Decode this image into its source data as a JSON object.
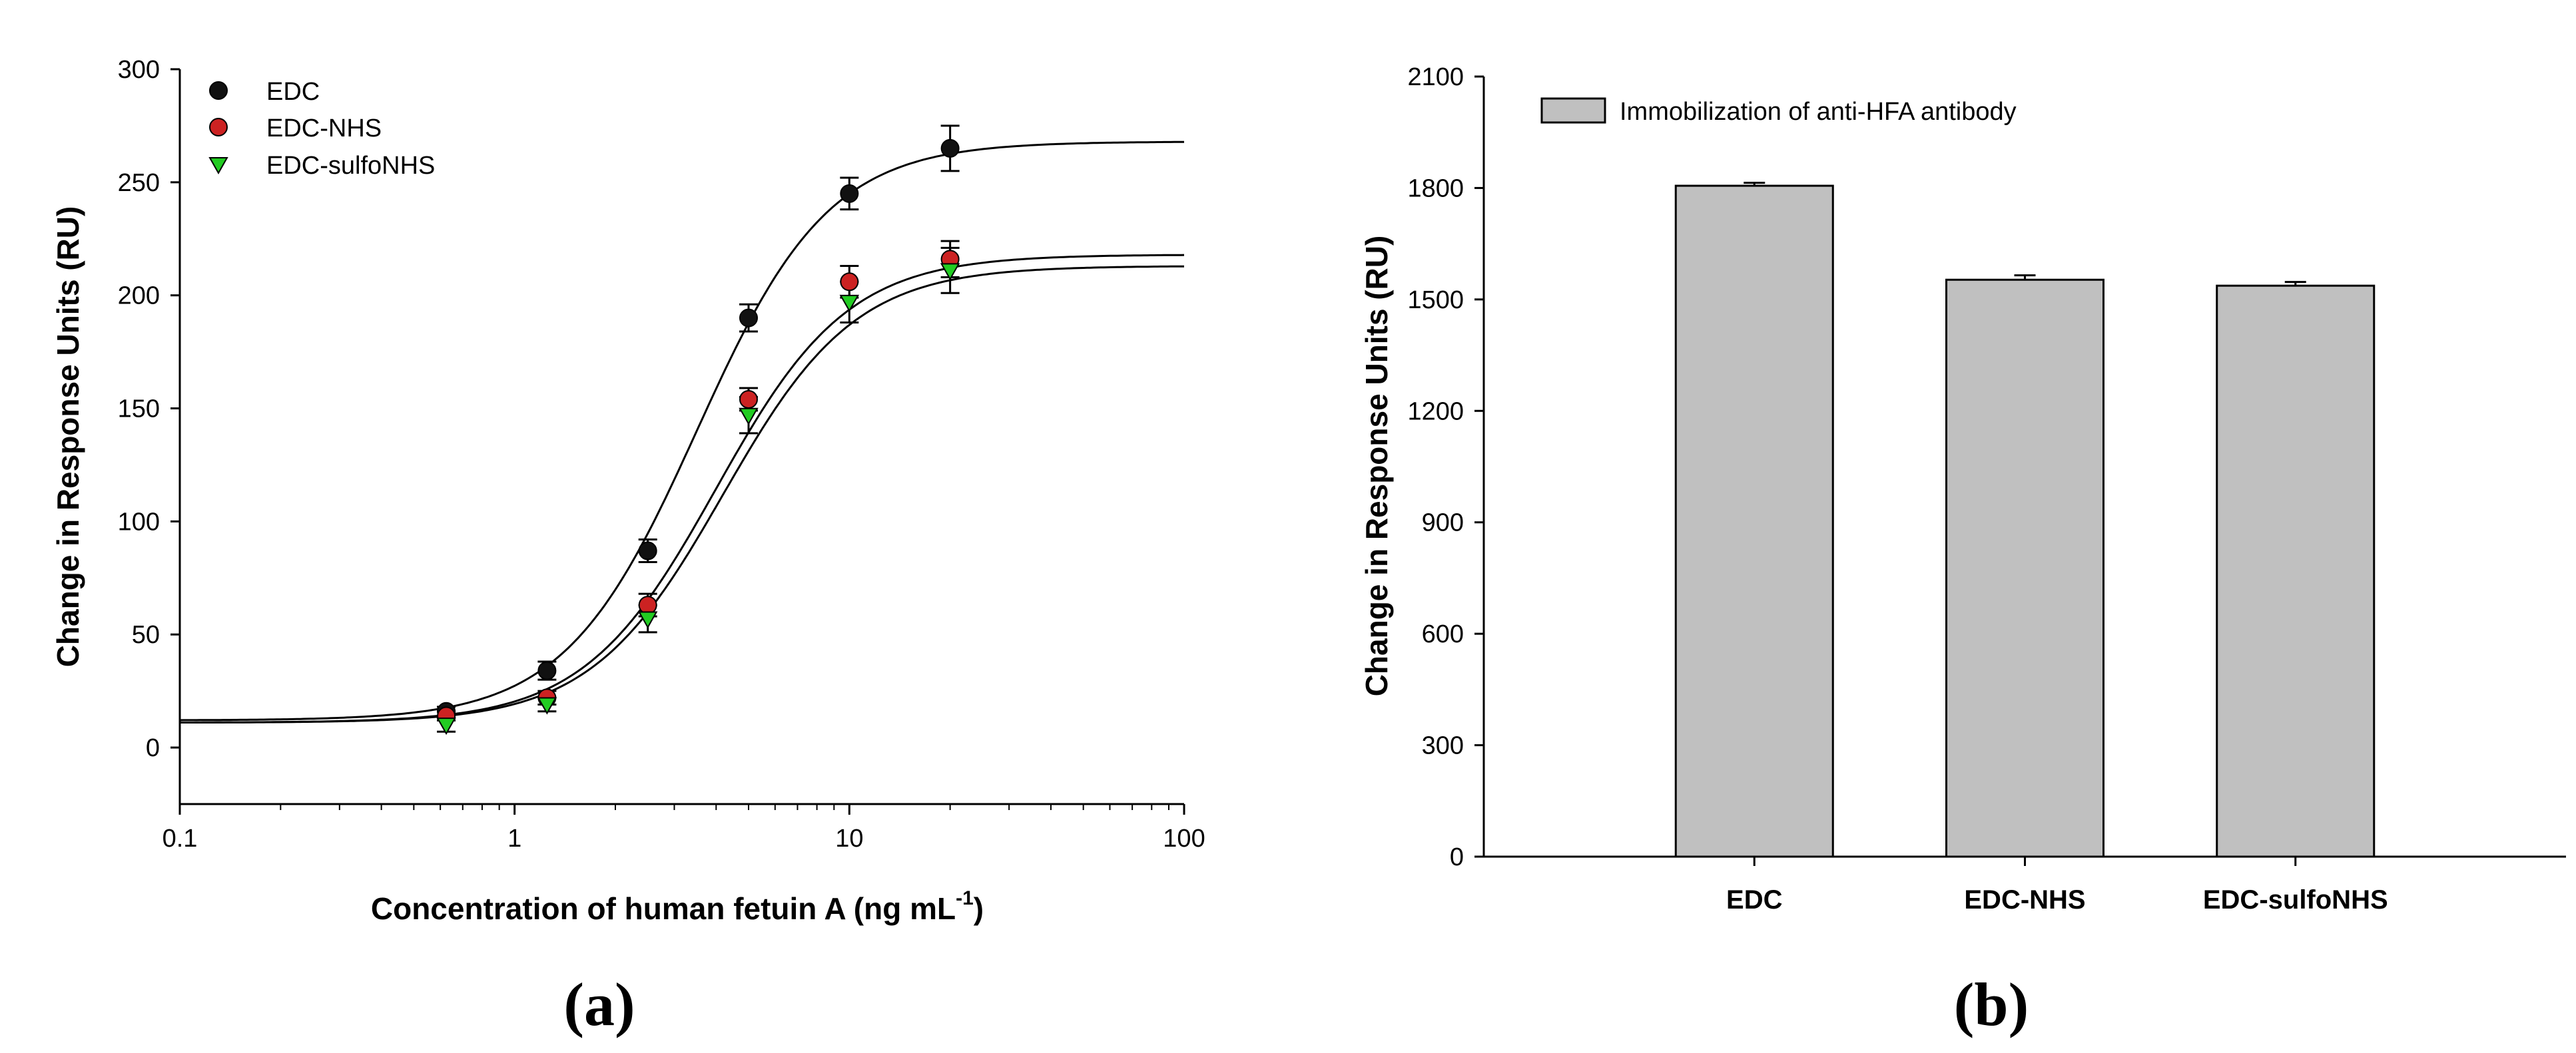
{
  "chart_data": [
    {
      "type": "scatter",
      "panel_label": "(a)",
      "xscale": "log",
      "xlim": [
        0.1,
        100
      ],
      "ylim": [
        -25,
        300
      ],
      "xticks": [
        "0.1",
        "1",
        "10",
        "100"
      ],
      "yticks": [
        "0",
        "50",
        "100",
        "150",
        "200",
        "250",
        "300"
      ],
      "xlabel": "Concentration of human fetuin A (ng mL",
      "xlabel_sup": "-1",
      "xlabel_end": ")",
      "ylabel": "Change in Response Units (RU)",
      "legend_position": "top-left",
      "series": [
        {
          "name": "EDC",
          "marker": "circle",
          "color": "#111111",
          "x": [
            0.625,
            1.25,
            2.5,
            5,
            10,
            20
          ],
          "y": [
            16,
            34,
            87,
            190,
            245,
            265
          ],
          "err": [
            2,
            4,
            5,
            6,
            7,
            10
          ],
          "fit": {
            "bottom": 12,
            "top": 268,
            "ec50": 3.5,
            "hill": 2.2
          }
        },
        {
          "name": "EDC-NHS",
          "marker": "circle",
          "color": "#cc2222",
          "x": [
            0.625,
            1.25,
            2.5,
            5,
            10,
            20
          ],
          "y": [
            14,
            22,
            63,
            154,
            206,
            216
          ],
          "err": [
            2,
            3,
            5,
            5,
            7,
            8
          ],
          "fit": {
            "bottom": 11,
            "top": 218,
            "ec50": 4.0,
            "hill": 2.2
          }
        },
        {
          "name": "EDC-sulfoNHS",
          "marker": "triangle-down",
          "color": "#22cc22",
          "x": [
            0.625,
            1.25,
            2.5,
            5,
            10,
            20
          ],
          "y": [
            10,
            19,
            57,
            147,
            197,
            211
          ],
          "err": [
            3,
            3,
            6,
            8,
            9,
            10
          ],
          "fit": {
            "bottom": 11,
            "top": 213,
            "ec50": 4.2,
            "hill": 2.2
          }
        }
      ]
    },
    {
      "type": "bar",
      "panel_label": "(b)",
      "categories": [
        "EDC",
        "EDC-NHS",
        "EDC-sulfoNHS"
      ],
      "series": [
        {
          "name": "Immobilization of anti-HFA antibody",
          "color": "#c0c0c0",
          "values": [
            1806,
            1553,
            1537
          ],
          "err": [
            8,
            12,
            10
          ]
        }
      ],
      "ylim": [
        0,
        2100
      ],
      "yticks": [
        "0",
        "300",
        "600",
        "900",
        "1200",
        "1500",
        "1800",
        "2100"
      ],
      "ylabel": "Change in Response Units (RU)",
      "xlabel": "",
      "legend_position": "top-left"
    }
  ]
}
